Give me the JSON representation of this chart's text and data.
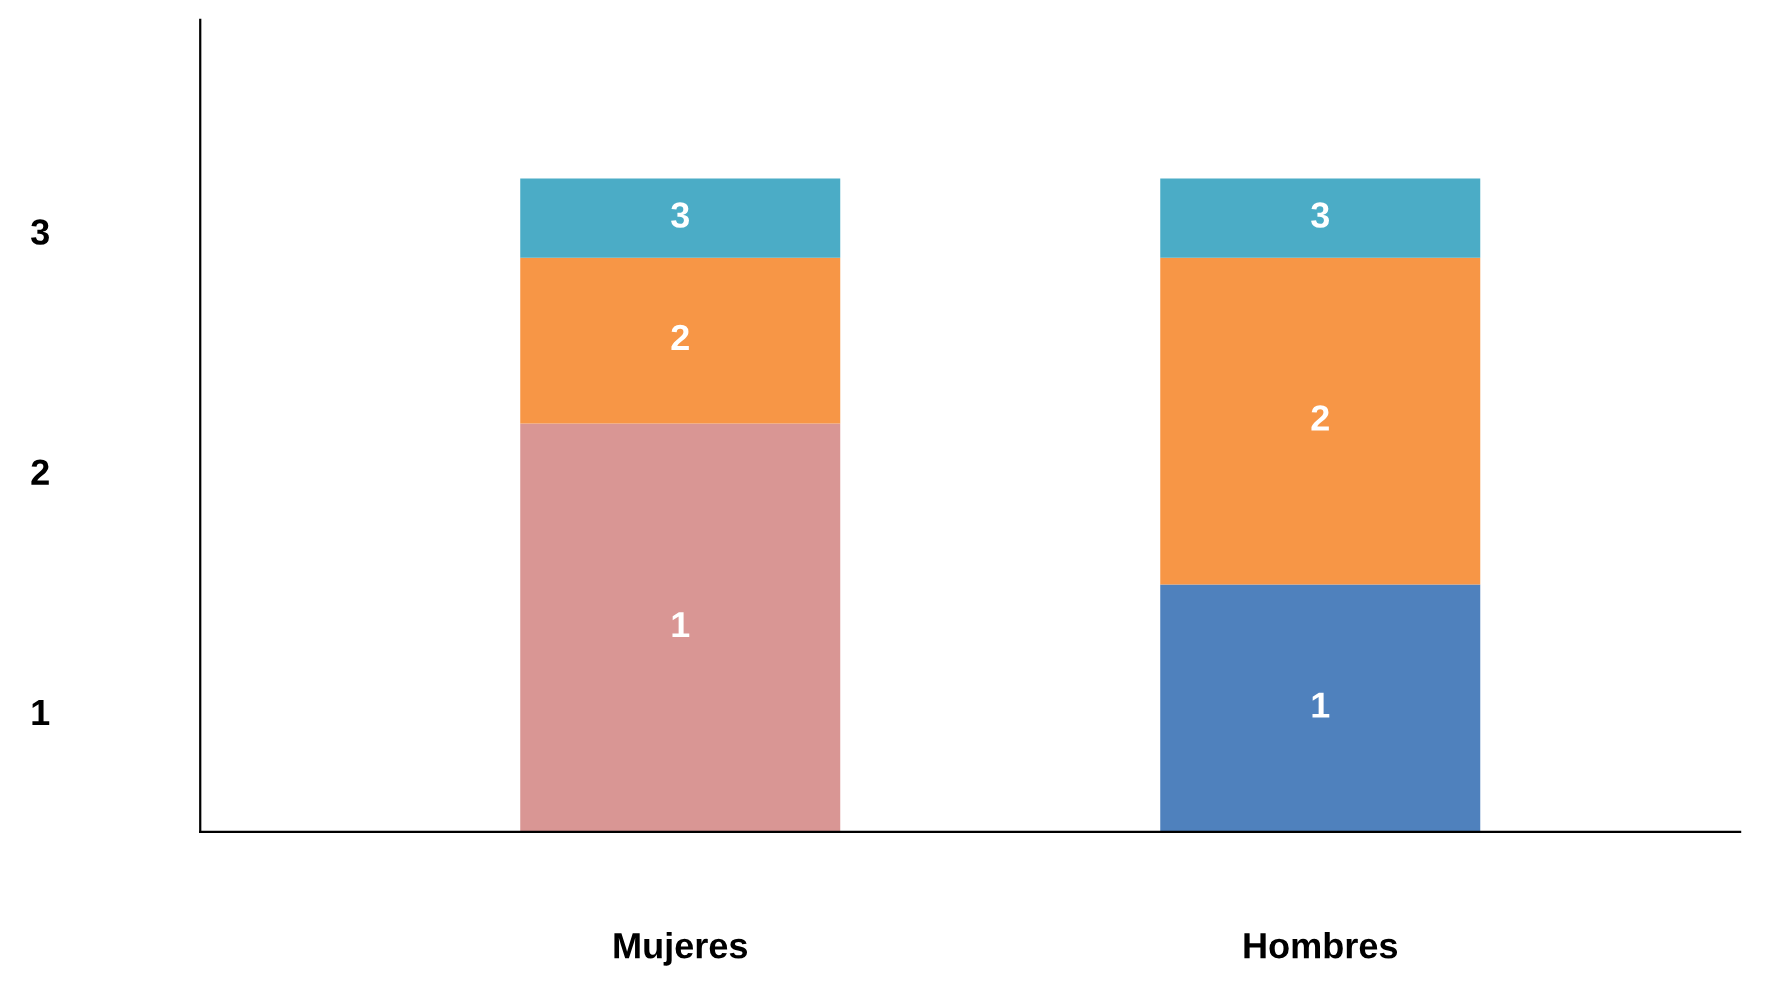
{
  "chart_data": {
    "type": "bar",
    "stacked": true,
    "categories": [
      "Mujeres",
      "Hombres"
    ],
    "series": [
      {
        "name": "1",
        "colors": [
          "#d99694",
          "#4f81bd"
        ],
        "values": [
          1.7,
          1.03
        ]
      },
      {
        "name": "2",
        "color": "#f79646",
        "values": [
          0.69,
          1.36
        ]
      },
      {
        "name": "3",
        "color": "#4bacc6",
        "values": [
          0.33,
          0.33
        ]
      }
    ],
    "ylim": [
      0,
      3.38
    ],
    "yticks": [
      {
        "value": 0.5,
        "label": "1"
      },
      {
        "value": 1.5,
        "label": "2"
      },
      {
        "value": 2.5,
        "label": "3"
      }
    ],
    "grid": false,
    "legend": false
  }
}
